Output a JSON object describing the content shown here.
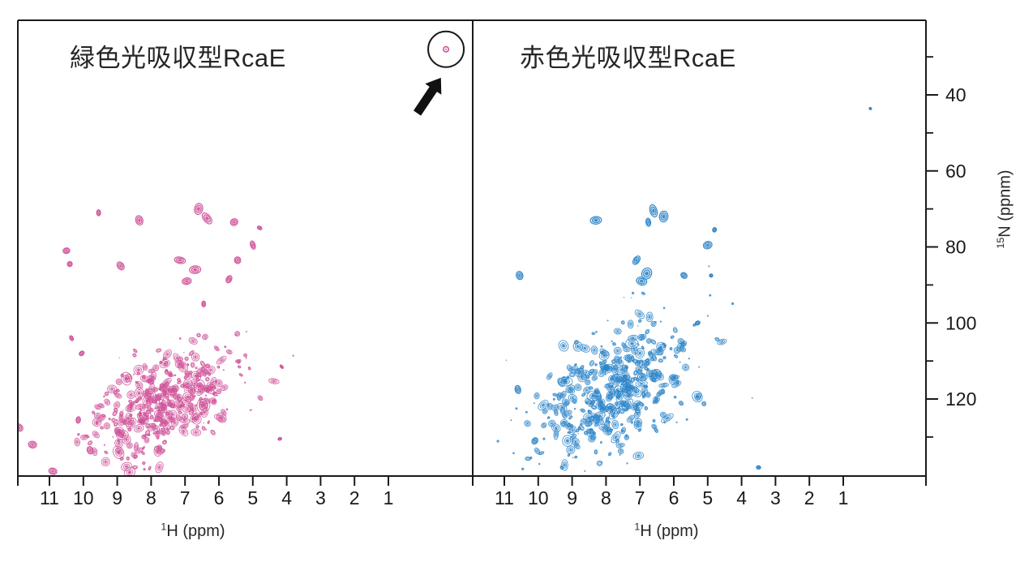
{
  "figure": {
    "background": "#ffffff",
    "frame_color": "#1a1a1a",
    "text_color": "#262626"
  },
  "axes": {
    "x_label_sup": "1",
    "x_label_text": "H (ppm)",
    "y_label_sup": "15",
    "y_label_text": "N (ppnm)",
    "x_ticks": [
      11,
      10,
      9,
      8,
      7,
      6,
      5,
      4,
      3,
      2,
      1
    ],
    "y_major_ticks": [
      40,
      60,
      80,
      100,
      120
    ],
    "y_minor_ticks": [
      30,
      50,
      70,
      90,
      110,
      130
    ],
    "x_range_ppm": [
      12,
      -1.5
    ],
    "y_range_ppm": [
      21,
      140
    ],
    "grid": false,
    "legend": "none"
  },
  "chart_data": [
    {
      "type": "scatter",
      "panel": "left",
      "title": "緑色光吸収型RcaE",
      "color": "#cf5399",
      "xlabel": "¹H (ppm)",
      "ylabel": "¹⁵N (ppnm)",
      "main_cluster": {
        "h_center": 7.55,
        "n_center": 120.5,
        "h_sd": 1.0,
        "n_sd": 7.8,
        "hn_corr": 0.5,
        "count": 320,
        "seed": 42
      },
      "isolated_peaks": [
        [
          8.35,
          73,
          5
        ],
        [
          6.6,
          70,
          6
        ],
        [
          6.35,
          72.5,
          6
        ],
        [
          8.9,
          85,
          5
        ],
        [
          7.15,
          83.5,
          5
        ],
        [
          6.7,
          86,
          5
        ],
        [
          6.95,
          89,
          5
        ],
        [
          5.45,
          83.5,
          4
        ],
        [
          5.0,
          79.5,
          4
        ],
        [
          4.8,
          75,
          2.5
        ],
        [
          5.7,
          88.5,
          3.5
        ],
        [
          9.55,
          71,
          3
        ],
        [
          10.5,
          81,
          4
        ],
        [
          10.4,
          84.5,
          3
        ],
        [
          5.55,
          73.5,
          4
        ],
        [
          11.9,
          127.5,
          4
        ],
        [
          11.5,
          132,
          4
        ],
        [
          10.9,
          139,
          4
        ],
        [
          10.15,
          125.5,
          3
        ],
        [
          9.8,
          133.5,
          4
        ],
        [
          4.15,
          111.5,
          2
        ],
        [
          4.2,
          130.5,
          2
        ],
        [
          10.35,
          104,
          2.5
        ],
        [
          10.05,
          108,
          3
        ],
        [
          6.45,
          95,
          3
        ]
      ],
      "highlight": {
        "peak_h": -0.7,
        "peak_n": 28.0,
        "circle_radius_px": 22,
        "arrow_from_h": 0.15,
        "arrow_from_n": 44.8,
        "arrow_to_h": -0.55,
        "arrow_to_n": 35.5
      }
    },
    {
      "type": "scatter",
      "panel": "right",
      "title": "赤色光吸収型RcaE",
      "color": "#2d85c8",
      "xlabel": "¹H (ppm)",
      "ylabel": "¹⁵N (ppnm)",
      "main_cluster": {
        "h_center": 7.75,
        "n_center": 117.5,
        "h_sd": 1.1,
        "n_sd": 9.0,
        "hn_corr": 0.45,
        "count": 330,
        "seed": 99
      },
      "isolated_peaks": [
        [
          8.3,
          73,
          5
        ],
        [
          6.6,
          70.5,
          6
        ],
        [
          6.3,
          72,
          6
        ],
        [
          6.75,
          73.5,
          4
        ],
        [
          4.8,
          75.5,
          2.5
        ],
        [
          5.0,
          79.5,
          4.5
        ],
        [
          7.1,
          83.5,
          5
        ],
        [
          6.8,
          87,
          6
        ],
        [
          6.95,
          89,
          5
        ],
        [
          5.7,
          87.5,
          4
        ],
        [
          4.9,
          87.5,
          2
        ],
        [
          10.55,
          87.5,
          4
        ],
        [
          10.6,
          117.5,
          4
        ],
        [
          10.1,
          131,
          4
        ],
        [
          0.2,
          43.6,
          1.5
        ],
        [
          3.5,
          138,
          2.5
        ],
        [
          5.3,
          100,
          3
        ]
      ],
      "highlight": null
    }
  ]
}
